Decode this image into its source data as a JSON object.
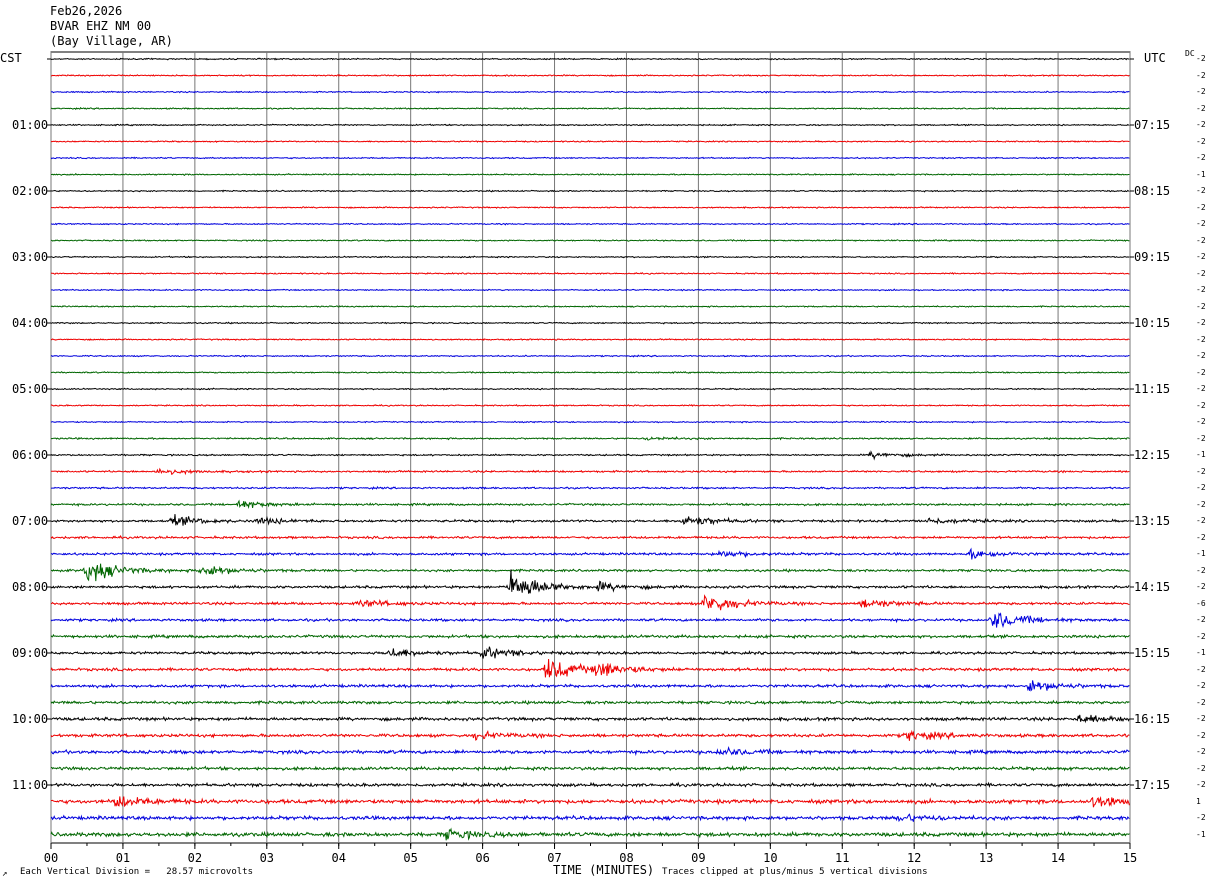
{
  "header": {
    "date": "Feb26,2026",
    "station": "BVAR EHZ NM 00",
    "location": "(Bay Village, AR)"
  },
  "left_timezone": "CST",
  "right_timezone": "UTC",
  "dc_label": "DC",
  "footer": {
    "division_note": "Each Vertical Division =   28.57 microvolts",
    "xaxis_title": "TIME (MINUTES)",
    "clip_note": "Traces clipped at plus/minus 5 vertical divisions",
    "corner_mark": "↗"
  },
  "colors": {
    "trace_cycle": [
      "#000000",
      "#ee0000",
      "#0000dd",
      "#006600"
    ],
    "grid": "#777777",
    "background": "#ffffff"
  },
  "chart_data": {
    "type": "line",
    "subtype": "helicorder",
    "x_unit": "minutes",
    "xlim": [
      0,
      15
    ],
    "x_ticks": [
      "00",
      "01",
      "02",
      "03",
      "04",
      "05",
      "06",
      "07",
      "08",
      "09",
      "10",
      "11",
      "12",
      "13",
      "14",
      "15"
    ],
    "row_count": 48,
    "left_hour_labels": [
      "01:00",
      "02:00",
      "03:00",
      "04:00",
      "05:00",
      "06:00",
      "07:00",
      "08:00",
      "09:00",
      "10:00",
      "11:00"
    ],
    "right_hour_labels": [
      "07:15",
      "08:15",
      "09:15",
      "10:15",
      "11:15",
      "12:15",
      "13:15",
      "14:15",
      "15:15",
      "16:15",
      "17:15"
    ],
    "dc_offsets": [
      "-2",
      "-2",
      "-2",
      "-2",
      "-2",
      "-2",
      "-2",
      "-1",
      "-2",
      "-2",
      "-2",
      "-2",
      "-2",
      "-2",
      "-2",
      "-2",
      "-2",
      "-2",
      "-2",
      "-2",
      "-2",
      "-2",
      "-2",
      "-2",
      "-1",
      "-2",
      "-2",
      "-2",
      "-2",
      "-2",
      "-1",
      "-2",
      "-2",
      "-6",
      "-2",
      "-2",
      "-1",
      "-2",
      "-2",
      "-2",
      "-2",
      "-2",
      "-2",
      "-2",
      "-2",
      "1",
      "-2",
      "-1"
    ],
    "noise_levels": [
      0.5,
      0.5,
      0.5,
      0.5,
      0.5,
      0.5,
      0.5,
      0.5,
      0.5,
      0.5,
      0.5,
      0.5,
      0.5,
      0.5,
      0.5,
      0.5,
      0.5,
      0.5,
      0.5,
      0.5,
      0.5,
      0.5,
      0.5,
      0.6,
      0.6,
      0.7,
      0.7,
      0.8,
      0.9,
      0.9,
      0.9,
      0.9,
      1.0,
      1.0,
      1.0,
      1.1,
      1.0,
      1.1,
      1.1,
      1.1,
      1.2,
      1.2,
      1.3,
      1.2,
      1.2,
      1.5,
      1.4,
      1.5
    ],
    "events": [
      {
        "row": 23,
        "minute": 8.3,
        "amplitude": 1.2
      },
      {
        "row": 24,
        "minute": 11.4,
        "amplitude": 2.5
      },
      {
        "row": 25,
        "minute": 1.5,
        "amplitude": 2.5
      },
      {
        "row": 27,
        "minute": 2.6,
        "amplitude": 3
      },
      {
        "row": 28,
        "minute": 1.7,
        "amplitude": 4
      },
      {
        "row": 28,
        "minute": 2.9,
        "amplitude": 2.5
      },
      {
        "row": 28,
        "minute": 8.8,
        "amplitude": 5
      },
      {
        "row": 28,
        "minute": 12.2,
        "amplitude": 2.5
      },
      {
        "row": 30,
        "minute": 9.3,
        "amplitude": 3
      },
      {
        "row": 30,
        "minute": 12.8,
        "amplitude": 4
      },
      {
        "row": 31,
        "minute": 0.5,
        "amplitude": 10
      },
      {
        "row": 31,
        "minute": 2.1,
        "amplitude": 5
      },
      {
        "row": 32,
        "minute": 6.4,
        "amplitude": 14
      },
      {
        "row": 32,
        "minute": 7.6,
        "amplitude": 3
      },
      {
        "row": 33,
        "minute": 4.3,
        "amplitude": 3
      },
      {
        "row": 33,
        "minute": 9.1,
        "amplitude": 9
      },
      {
        "row": 33,
        "minute": 11.3,
        "amplitude": 4
      },
      {
        "row": 34,
        "minute": 13.1,
        "amplitude": 8
      },
      {
        "row": 36,
        "minute": 4.7,
        "amplitude": 4
      },
      {
        "row": 36,
        "minute": 6.0,
        "amplitude": 5
      },
      {
        "row": 37,
        "minute": 6.9,
        "amplitude": 10
      },
      {
        "row": 37,
        "minute": 7.6,
        "amplitude": 6
      },
      {
        "row": 38,
        "minute": 13.6,
        "amplitude": 5
      },
      {
        "row": 40,
        "minute": 14.3,
        "amplitude": 3
      },
      {
        "row": 41,
        "minute": 5.9,
        "amplitude": 3
      },
      {
        "row": 41,
        "minute": 11.9,
        "amplitude": 4
      },
      {
        "row": 42,
        "minute": 9.3,
        "amplitude": 3
      },
      {
        "row": 45,
        "minute": 0.9,
        "amplitude": 5
      },
      {
        "row": 45,
        "minute": 14.5,
        "amplitude": 5
      },
      {
        "row": 46,
        "minute": 11.8,
        "amplitude": 3
      },
      {
        "row": 47,
        "minute": 5.5,
        "amplitude": 4
      }
    ]
  }
}
